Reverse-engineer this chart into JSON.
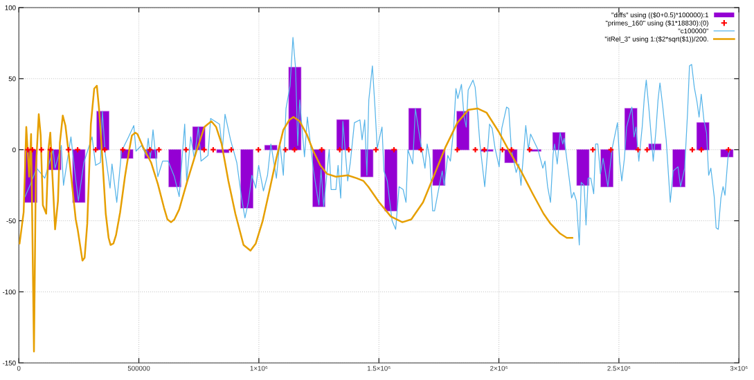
{
  "chart_data": {
    "type": "line",
    "xlim": [
      0,
      3000000
    ],
    "xticks": [
      0,
      500000,
      {
        "value": 1000000,
        "label": "1×10⁶"
      },
      {
        "value": 1500000,
        "label": "1.5×10⁶"
      },
      {
        "value": 2000000,
        "label": "2×10⁶"
      },
      {
        "value": 2500000,
        "label": "2.5×10⁶"
      },
      {
        "value": 3000000,
        "label": "3×10⁶"
      }
    ],
    "ylim": [
      -150,
      100
    ],
    "yticks": [
      -150,
      -100,
      -50,
      0,
      50,
      100
    ],
    "grid": true,
    "legend": "top right",
    "series": [
      {
        "name": "\"diffs\" using (($0+0.5)*100000):1",
        "type": "bar",
        "color": "#9400d3",
        "x": [
          50000,
          150000,
          250000,
          350000,
          450000,
          550000,
          650000,
          750000,
          850000,
          950000,
          1050000,
          1150000,
          1250000,
          1350000,
          1450000,
          1550000,
          1650000,
          1750000,
          1850000,
          1950000,
          2050000,
          2150000,
          2250000,
          2350000,
          2450000,
          2550000,
          2650000,
          2750000,
          2850000,
          2950000
        ],
        "values": [
          -37,
          -14,
          -37,
          27,
          -6,
          -6,
          -26,
          16,
          -2,
          -41,
          3,
          58,
          -40,
          21,
          -19,
          -43,
          29,
          -25,
          27,
          -1,
          -9,
          -1,
          12,
          -25,
          -26,
          29,
          4,
          -26,
          19,
          -5
        ]
      },
      {
        "name": "\"primes_160\" using ($1*18830):(0)",
        "type": "scatter",
        "color": "#ff0000",
        "marker": "cross",
        "x": [
          37660,
          56490,
          94150,
          131810,
          207130,
          244790,
          320110,
          357770,
          433090,
          546070,
          583730,
          696710,
          772030,
          809690,
          885010,
          997990,
          1110970,
          1148630,
          1261610,
          1336930,
          1374590,
          1487570,
          1562890,
          1675870,
          1826510,
          1901830,
          1939490,
          2014810,
          2052470,
          2127790,
          2391410,
          2466730,
          2579710,
          2617370,
          2805670,
          2843330,
          2956310
        ],
        "values": [
          0,
          0,
          0,
          0,
          0,
          0,
          0,
          0,
          0,
          0,
          0,
          0,
          0,
          0,
          0,
          0,
          0,
          0,
          0,
          0,
          0,
          0,
          0,
          0,
          0,
          0,
          0,
          0,
          0,
          0,
          0,
          0,
          0,
          0,
          0,
          0,
          0
        ]
      },
      {
        "name": "\"c100000\"",
        "color": "#56b4e9",
        "x": [
          26000,
          49000,
          74000,
          108000,
          143000,
          151000,
          177000,
          186000,
          217000,
          237000,
          248000,
          271000,
          305000,
          320000,
          340000,
          348000,
          360000,
          380000,
          388000,
          408000,
          428000,
          457000,
          479000,
          488000,
          511000,
          531000,
          539000,
          548000,
          559000,
          579000,
          599000,
          622000,
          648000,
          668000,
          691000,
          699000,
          716000,
          731000,
          748000,
          759000,
          788000,
          799000,
          836000,
          848000,
          859000,
          882000,
          908000,
          928000,
          942000,
          956000,
          971000,
          987000,
          999000,
          1019000,
          1036000,
          1050000,
          1073000,
          1087000,
          1102000,
          1113000,
          1130000,
          1142000,
          1153000,
          1162000,
          1170000,
          1190000,
          1202000,
          1227000,
          1250000,
          1259000,
          1270000,
          1293000,
          1301000,
          1321000,
          1330000,
          1341000,
          1350000,
          1370000,
          1381000,
          1398000,
          1421000,
          1430000,
          1441000,
          1450000,
          1458000,
          1473000,
          1484000,
          1493000,
          1513000,
          1521000,
          1535000,
          1555000,
          1570000,
          1584000,
          1601000,
          1613000,
          1621000,
          1641000,
          1652000,
          1672000,
          1692000,
          1701000,
          1712000,
          1724000,
          1732000,
          1752000,
          1764000,
          1772000,
          1787000,
          1798000,
          1812000,
          1821000,
          1829000,
          1844000,
          1855000,
          1864000,
          1872000,
          1892000,
          1901000,
          1912000,
          1921000,
          1941000,
          1952000,
          1961000,
          1972000,
          1984000,
          2001000,
          2012000,
          2032000,
          2041000,
          2052000,
          2072000,
          2083000,
          2092000,
          2112000,
          2123000,
          2132000,
          2163000,
          2183000,
          2192000,
          2203000,
          2215000,
          2226000,
          2232000,
          2243000,
          2255000,
          2266000,
          2272000,
          2292000,
          2303000,
          2312000,
          2323000,
          2335000,
          2343000,
          2355000,
          2363000,
          2372000,
          2383000,
          2395000,
          2403000,
          2412000,
          2423000,
          2434000,
          2454000,
          2472000,
          2483000,
          2494000,
          2503000,
          2512000,
          2523000,
          2532000,
          2554000,
          2563000,
          2571000,
          2583000,
          2597000,
          2606000,
          2614000,
          2626000,
          2643000,
          2654000,
          2663000,
          2671000,
          2683000,
          2697000,
          2714000,
          2726000,
          2746000,
          2757000,
          2774000,
          2786000,
          2794000,
          2803000,
          2814000,
          2825000,
          2834000,
          2843000,
          2854000,
          2865000,
          2874000,
          2883000,
          2897000,
          2905000,
          2914000,
          2925000,
          2934000,
          2942000,
          2954000,
          2962000
        ],
        "values": [
          -33,
          -24,
          -13,
          -20,
          0,
          -13,
          3,
          -25,
          9,
          -21,
          -36,
          -9,
          9,
          -11,
          -9,
          27,
          -3,
          -27,
          -10,
          -37,
          -1,
          9,
          17,
          -1,
          3,
          -4,
          8,
          -6,
          14,
          -19,
          -8,
          -8,
          -19,
          -33,
          18,
          -22,
          9,
          -6,
          16,
          -8,
          -4,
          22,
          18,
          0,
          25,
          7,
          -9,
          -34,
          -48,
          -37,
          -18,
          -27,
          -11,
          -29,
          -18,
          4,
          -20,
          5,
          -18,
          29,
          45,
          79,
          57,
          3,
          35,
          -5,
          23,
          -14,
          -39,
          -14,
          -40,
          0,
          -28,
          -28,
          -11,
          -34,
          20,
          -22,
          -9,
          19,
          21,
          7,
          21,
          -18,
          35,
          59,
          29,
          1,
          16,
          -15,
          -22,
          -50,
          -56,
          -26,
          -28,
          -37,
          0,
          -10,
          29,
          7,
          -13,
          4,
          -6,
          -43,
          -43,
          -25,
          -15,
          -25,
          -4,
          -8,
          16,
          43,
          36,
          46,
          23,
          16,
          42,
          49,
          44,
          24,
          4,
          -26,
          -3,
          18,
          15,
          1,
          -12,
          15,
          30,
          29,
          0,
          -16,
          -10,
          -25,
          17,
          0,
          11,
          0,
          -13,
          -8,
          -26,
          -37,
          -3,
          4,
          -10,
          12,
          4,
          8,
          -19,
          -34,
          -30,
          -36,
          -67,
          -23,
          -25,
          -53,
          -20,
          -20,
          -31,
          4,
          4,
          -17,
          -6,
          -26,
          1,
          10,
          19,
          -8,
          -22,
          -6,
          16,
          30,
          9,
          16,
          -8,
          16,
          37,
          49,
          27,
          -8,
          13,
          35,
          47,
          30,
          7,
          -37,
          -15,
          -12,
          -26,
          -13,
          26,
          59,
          60,
          44,
          34,
          23,
          39,
          21,
          12,
          -18,
          -13,
          -33,
          -55,
          -56,
          -34,
          -26,
          -32,
          -6,
          0
        ]
      },
      {
        "name": "\"itRel_3\" using 1:($2*sqrt($1))/200.",
        "color": "#e69f00",
        "x": [
          3000,
          20000,
          31000,
          43000,
          51000,
          63000,
          71000,
          83000,
          91000,
          100000,
          114000,
          123000,
          131000,
          151000,
          163000,
          171000,
          183000,
          194000,
          208000,
          237000,
          245000,
          265000,
          274000,
          285000,
          300000,
          314000,
          325000,
          334000,
          345000,
          362000,
          374000,
          382000,
          394000,
          405000,
          422000,
          442000,
          460000,
          471000,
          485000,
          494000,
          517000,
          551000,
          579000,
          605000,
          619000,
          634000,
          648000,
          668000,
          702000,
          742000,
          773000,
          802000,
          822000,
          845000,
          873000,
          902000,
          936000,
          965000,
          987000,
          1016000,
          1045000,
          1073000,
          1102000,
          1127000,
          1144000,
          1170000,
          1199000,
          1227000,
          1256000,
          1284000,
          1321000,
          1370000,
          1407000,
          1436000,
          1456000,
          1501000,
          1550000,
          1598000,
          1635000,
          1684000,
          1730000,
          1778000,
          1827000,
          1872000,
          1912000,
          1949000,
          1998000,
          2043000,
          2092000,
          2141000,
          2186000,
          2215000,
          2255000,
          2283000,
          2306000
        ],
        "values": [
          -66,
          -44,
          16,
          -19,
          11,
          -142,
          -13,
          25,
          10,
          -39,
          -45,
          0,
          12,
          -56,
          -36,
          5,
          24,
          17,
          -3,
          -49,
          -56,
          -78,
          -76,
          -52,
          18,
          43,
          45,
          29,
          2,
          -45,
          -62,
          -67,
          -66,
          -60,
          -44,
          -19,
          0,
          10,
          12,
          11,
          2,
          -9,
          -24,
          -41,
          -49,
          -51,
          -49,
          -42,
          -22,
          0,
          16,
          20,
          16,
          4,
          -22,
          -45,
          -67,
          -71,
          -66,
          -50,
          -28,
          -6,
          14,
          21,
          23,
          20,
          11,
          -1,
          -11,
          -17,
          -19,
          -18,
          -20,
          -22,
          -26,
          -37,
          -47,
          -51,
          -49,
          -37,
          -18,
          2,
          19,
          28,
          29,
          26,
          13,
          -1,
          -15,
          -31,
          -45,
          -52,
          -59,
          -62,
          -62
        ]
      }
    ]
  }
}
